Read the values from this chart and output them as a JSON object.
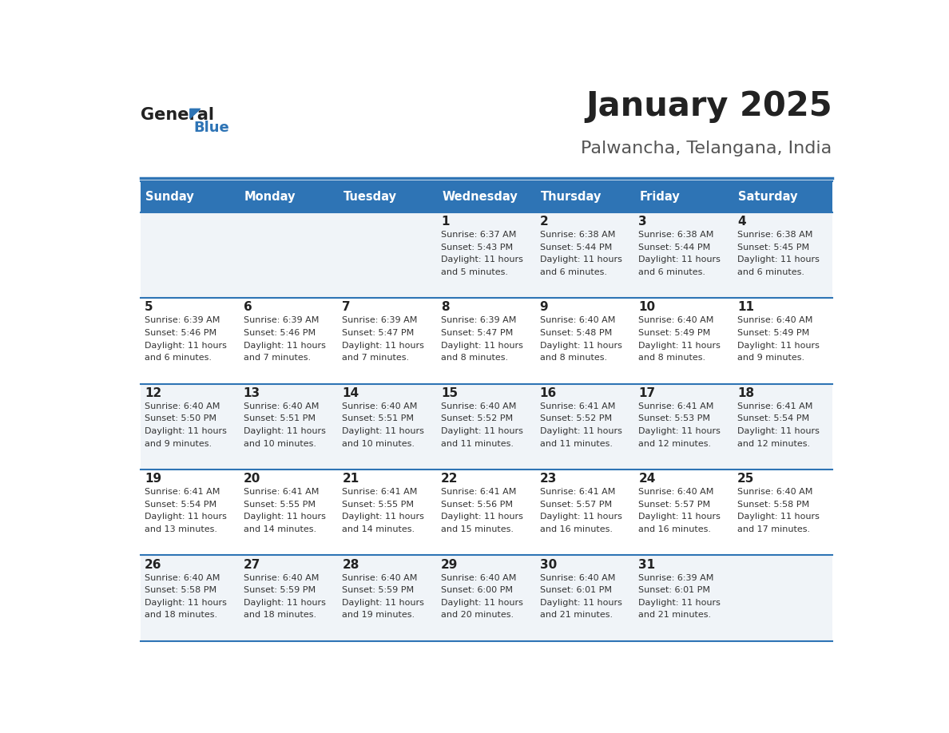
{
  "title": "January 2025",
  "subtitle": "Palwancha, Telangana, India",
  "header_bg_color": "#2E74B5",
  "header_text_color": "#FFFFFF",
  "day_names": [
    "Sunday",
    "Monday",
    "Tuesday",
    "Wednesday",
    "Thursday",
    "Friday",
    "Saturday"
  ],
  "row_bg_even": "#FFFFFF",
  "row_bg_odd": "#F0F4F8",
  "cell_text_color": "#333333",
  "day_num_color": "#222222",
  "border_color": "#2E74B5",
  "title_color": "#222222",
  "subtitle_color": "#555555",
  "calendar": [
    [
      {
        "day": "",
        "sunrise": "",
        "sunset": "",
        "daylight": ""
      },
      {
        "day": "",
        "sunrise": "",
        "sunset": "",
        "daylight": ""
      },
      {
        "day": "",
        "sunrise": "",
        "sunset": "",
        "daylight": ""
      },
      {
        "day": "1",
        "sunrise": "6:37 AM",
        "sunset": "5:43 PM",
        "daylight": "11 hours\nand 5 minutes."
      },
      {
        "day": "2",
        "sunrise": "6:38 AM",
        "sunset": "5:44 PM",
        "daylight": "11 hours\nand 6 minutes."
      },
      {
        "day": "3",
        "sunrise": "6:38 AM",
        "sunset": "5:44 PM",
        "daylight": "11 hours\nand 6 minutes."
      },
      {
        "day": "4",
        "sunrise": "6:38 AM",
        "sunset": "5:45 PM",
        "daylight": "11 hours\nand 6 minutes."
      }
    ],
    [
      {
        "day": "5",
        "sunrise": "6:39 AM",
        "sunset": "5:46 PM",
        "daylight": "11 hours\nand 6 minutes."
      },
      {
        "day": "6",
        "sunrise": "6:39 AM",
        "sunset": "5:46 PM",
        "daylight": "11 hours\nand 7 minutes."
      },
      {
        "day": "7",
        "sunrise": "6:39 AM",
        "sunset": "5:47 PM",
        "daylight": "11 hours\nand 7 minutes."
      },
      {
        "day": "8",
        "sunrise": "6:39 AM",
        "sunset": "5:47 PM",
        "daylight": "11 hours\nand 8 minutes."
      },
      {
        "day": "9",
        "sunrise": "6:40 AM",
        "sunset": "5:48 PM",
        "daylight": "11 hours\nand 8 minutes."
      },
      {
        "day": "10",
        "sunrise": "6:40 AM",
        "sunset": "5:49 PM",
        "daylight": "11 hours\nand 8 minutes."
      },
      {
        "day": "11",
        "sunrise": "6:40 AM",
        "sunset": "5:49 PM",
        "daylight": "11 hours\nand 9 minutes."
      }
    ],
    [
      {
        "day": "12",
        "sunrise": "6:40 AM",
        "sunset": "5:50 PM",
        "daylight": "11 hours\nand 9 minutes."
      },
      {
        "day": "13",
        "sunrise": "6:40 AM",
        "sunset": "5:51 PM",
        "daylight": "11 hours\nand 10 minutes."
      },
      {
        "day": "14",
        "sunrise": "6:40 AM",
        "sunset": "5:51 PM",
        "daylight": "11 hours\nand 10 minutes."
      },
      {
        "day": "15",
        "sunrise": "6:40 AM",
        "sunset": "5:52 PM",
        "daylight": "11 hours\nand 11 minutes."
      },
      {
        "day": "16",
        "sunrise": "6:41 AM",
        "sunset": "5:52 PM",
        "daylight": "11 hours\nand 11 minutes."
      },
      {
        "day": "17",
        "sunrise": "6:41 AM",
        "sunset": "5:53 PM",
        "daylight": "11 hours\nand 12 minutes."
      },
      {
        "day": "18",
        "sunrise": "6:41 AM",
        "sunset": "5:54 PM",
        "daylight": "11 hours\nand 12 minutes."
      }
    ],
    [
      {
        "day": "19",
        "sunrise": "6:41 AM",
        "sunset": "5:54 PM",
        "daylight": "11 hours\nand 13 minutes."
      },
      {
        "day": "20",
        "sunrise": "6:41 AM",
        "sunset": "5:55 PM",
        "daylight": "11 hours\nand 14 minutes."
      },
      {
        "day": "21",
        "sunrise": "6:41 AM",
        "sunset": "5:55 PM",
        "daylight": "11 hours\nand 14 minutes."
      },
      {
        "day": "22",
        "sunrise": "6:41 AM",
        "sunset": "5:56 PM",
        "daylight": "11 hours\nand 15 minutes."
      },
      {
        "day": "23",
        "sunrise": "6:41 AM",
        "sunset": "5:57 PM",
        "daylight": "11 hours\nand 16 minutes."
      },
      {
        "day": "24",
        "sunrise": "6:40 AM",
        "sunset": "5:57 PM",
        "daylight": "11 hours\nand 16 minutes."
      },
      {
        "day": "25",
        "sunrise": "6:40 AM",
        "sunset": "5:58 PM",
        "daylight": "11 hours\nand 17 minutes."
      }
    ],
    [
      {
        "day": "26",
        "sunrise": "6:40 AM",
        "sunset": "5:58 PM",
        "daylight": "11 hours\nand 18 minutes."
      },
      {
        "day": "27",
        "sunrise": "6:40 AM",
        "sunset": "5:59 PM",
        "daylight": "11 hours\nand 18 minutes."
      },
      {
        "day": "28",
        "sunrise": "6:40 AM",
        "sunset": "5:59 PM",
        "daylight": "11 hours\nand 19 minutes."
      },
      {
        "day": "29",
        "sunrise": "6:40 AM",
        "sunset": "6:00 PM",
        "daylight": "11 hours\nand 20 minutes."
      },
      {
        "day": "30",
        "sunrise": "6:40 AM",
        "sunset": "6:01 PM",
        "daylight": "11 hours\nand 21 minutes."
      },
      {
        "day": "31",
        "sunrise": "6:39 AM",
        "sunset": "6:01 PM",
        "daylight": "11 hours\nand 21 minutes."
      },
      {
        "day": "",
        "sunrise": "",
        "sunset": "",
        "daylight": ""
      }
    ]
  ]
}
